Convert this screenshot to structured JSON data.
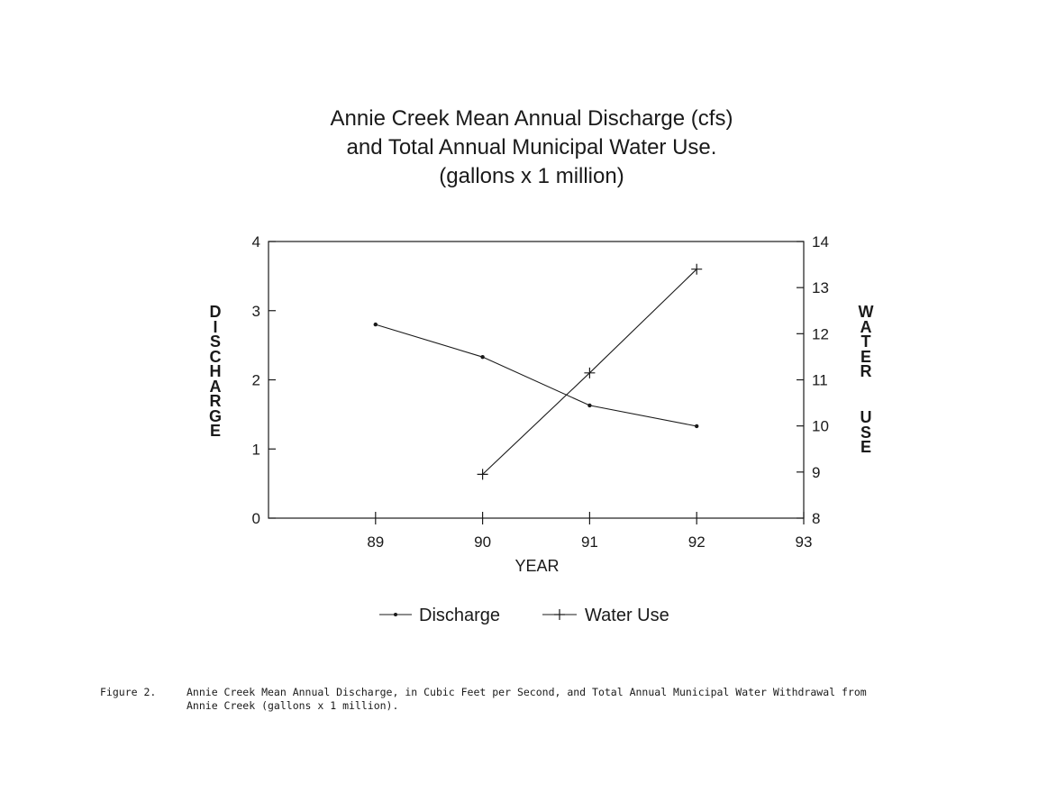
{
  "chart_data": {
    "type": "line",
    "title_lines": [
      "Annie Creek Mean Annual Discharge (cfs)",
      "and Total Annual Municipal Water Use.",
      "(gallons x 1 million)"
    ],
    "xlabel": "YEAR",
    "ylabel_left": "DISCHARGE",
    "ylabel_right_top": "WATER",
    "ylabel_right_bottom": "USE",
    "xlim": [
      88,
      93
    ],
    "ylim_left": [
      0,
      4
    ],
    "ylim_right": [
      8,
      14
    ],
    "x_ticks": [
      89,
      90,
      91,
      92,
      93
    ],
    "y_ticks_left": [
      0,
      1,
      2,
      3,
      4
    ],
    "y_ticks_right": [
      8,
      9,
      10,
      11,
      12,
      13,
      14
    ],
    "grid": false,
    "legend_position": "bottom",
    "series": [
      {
        "name": "Discharge",
        "axis": "left",
        "marker": "dot",
        "x": [
          89,
          90,
          91,
          92
        ],
        "y": [
          2.8,
          2.33,
          1.63,
          1.33
        ]
      },
      {
        "name": "Water Use",
        "axis": "right",
        "marker": "plus",
        "x": [
          90,
          91,
          92
        ],
        "y": [
          8.95,
          11.15,
          13.4
        ]
      }
    ]
  },
  "caption": {
    "label": "Figure 2.",
    "text": "Annie Creek Mean Annual Discharge, in Cubic Feet per Second, and Total Annual Municipal Water Withdrawal from\nAnnie Creek (gallons x 1 million)."
  },
  "colors": {
    "ink": "#1a1a1a",
    "background": "#ffffff"
  }
}
